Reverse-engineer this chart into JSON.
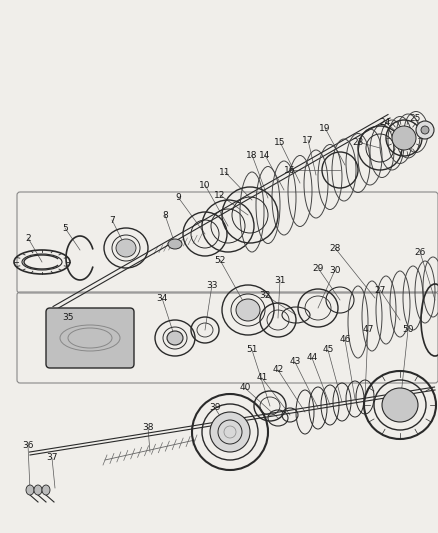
{
  "bg_color": "#f0eeea",
  "line_color": "#2a2a2a",
  "label_color": "#1a1a1a",
  "font_size": 6.5,
  "fig_w": 4.39,
  "fig_h": 5.33,
  "dpi": 100
}
